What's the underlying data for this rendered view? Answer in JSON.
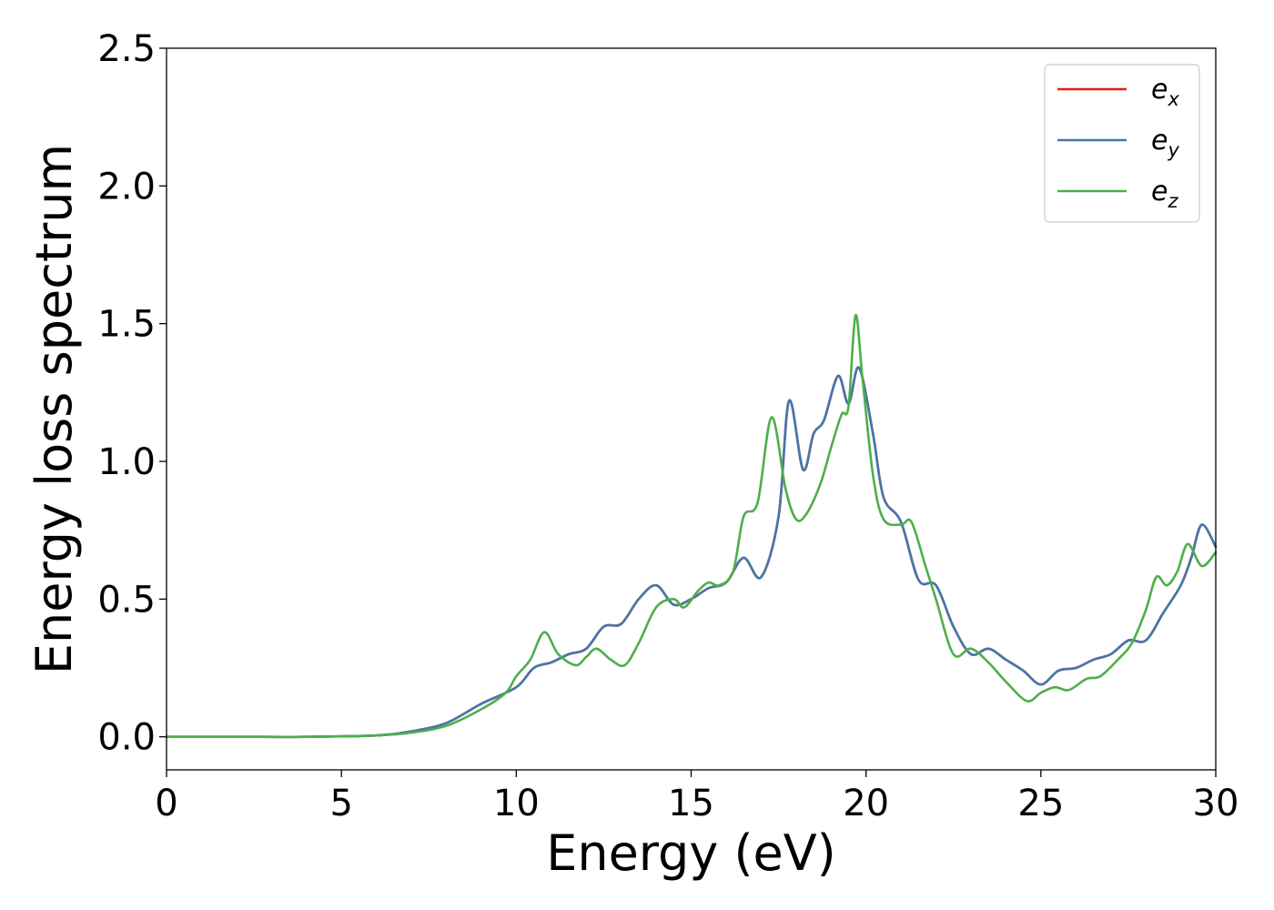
{
  "chart_data": {
    "type": "line",
    "xlabel": "Energy (eV)",
    "ylabel": "Energy loss spectrum",
    "xlim": [
      0,
      30
    ],
    "ylim": [
      -0.12,
      2.5
    ],
    "xticks": [
      0,
      5,
      10,
      15,
      20,
      25,
      30
    ],
    "xtick_labels": [
      "0",
      "5",
      "10",
      "15",
      "20",
      "25",
      "30"
    ],
    "yticks": [
      0.0,
      0.5,
      1.0,
      1.5,
      2.0,
      2.5
    ],
    "ytick_labels": [
      "0.0",
      "0.5",
      "1.0",
      "1.5",
      "2.0",
      "2.5"
    ],
    "grid": false,
    "legend_position": "top-right",
    "series": [
      {
        "name": "e_x",
        "legend_main": "e",
        "legend_sub": "x",
        "color": "#e41a1c",
        "x": [
          0,
          2,
          4,
          6,
          7,
          8,
          9,
          10,
          10.5,
          11,
          11.5,
          12,
          12.5,
          13,
          13.5,
          14,
          14.5,
          15,
          15.5,
          16,
          16.5,
          17,
          17.5,
          17.8,
          18.2,
          18.5,
          18.8,
          19.2,
          19.5,
          19.8,
          20.2,
          20.5,
          21,
          21.5,
          22,
          22.5,
          23,
          23.5,
          24,
          24.5,
          25,
          25.5,
          26,
          26.5,
          27,
          27.5,
          28,
          28.5,
          29,
          29.3,
          29.6,
          30
        ],
        "y": [
          0,
          0,
          0,
          0.005,
          0.02,
          0.05,
          0.12,
          0.18,
          0.25,
          0.27,
          0.3,
          0.32,
          0.4,
          0.41,
          0.5,
          0.55,
          0.48,
          0.5,
          0.54,
          0.56,
          0.65,
          0.58,
          0.8,
          1.22,
          0.97,
          1.1,
          1.15,
          1.31,
          1.21,
          1.34,
          1.1,
          0.87,
          0.78,
          0.57,
          0.55,
          0.4,
          0.3,
          0.32,
          0.28,
          0.24,
          0.19,
          0.24,
          0.25,
          0.28,
          0.3,
          0.35,
          0.35,
          0.45,
          0.55,
          0.65,
          0.77,
          0.69
        ]
      },
      {
        "name": "e_y",
        "legend_main": "e",
        "legend_sub": "y",
        "color": "#4477aa",
        "x": [
          0,
          2,
          4,
          6,
          7,
          8,
          9,
          10,
          10.5,
          11,
          11.5,
          12,
          12.5,
          13,
          13.5,
          14,
          14.5,
          15,
          15.5,
          16,
          16.5,
          17,
          17.5,
          17.8,
          18.2,
          18.5,
          18.8,
          19.2,
          19.5,
          19.8,
          20.2,
          20.5,
          21,
          21.5,
          22,
          22.5,
          23,
          23.5,
          24,
          24.5,
          25,
          25.5,
          26,
          26.5,
          27,
          27.5,
          28,
          28.5,
          29,
          29.3,
          29.6,
          30
        ],
        "y": [
          0,
          0,
          0,
          0.005,
          0.02,
          0.05,
          0.12,
          0.18,
          0.25,
          0.27,
          0.3,
          0.32,
          0.4,
          0.41,
          0.5,
          0.55,
          0.48,
          0.5,
          0.54,
          0.56,
          0.65,
          0.58,
          0.8,
          1.22,
          0.97,
          1.1,
          1.15,
          1.31,
          1.21,
          1.34,
          1.1,
          0.87,
          0.78,
          0.57,
          0.55,
          0.4,
          0.3,
          0.32,
          0.28,
          0.24,
          0.19,
          0.24,
          0.25,
          0.28,
          0.3,
          0.35,
          0.35,
          0.45,
          0.55,
          0.65,
          0.77,
          0.69
        ]
      },
      {
        "name": "e_z",
        "legend_main": "e",
        "legend_sub": "z",
        "color": "#4daf4a",
        "x": [
          0,
          2,
          4,
          6,
          7,
          8,
          9,
          9.7,
          10,
          10.4,
          10.8,
          11.2,
          11.7,
          12,
          12.3,
          12.7,
          13.1,
          13.5,
          14,
          14.5,
          14.8,
          15.2,
          15.5,
          15.8,
          16.2,
          16.5,
          16.9,
          17.3,
          17.7,
          18,
          18.3,
          18.7,
          19,
          19.3,
          19.5,
          19.7,
          19.9,
          20.2,
          20.5,
          21,
          21.3,
          21.7,
          22,
          22.5,
          23,
          23.5,
          24,
          24.6,
          25,
          25.4,
          25.8,
          26.3,
          26.7,
          27.2,
          27.6,
          28,
          28.3,
          28.6,
          28.9,
          29.2,
          29.6,
          30
        ],
        "y": [
          0,
          0,
          0,
          0.005,
          0.015,
          0.04,
          0.1,
          0.16,
          0.22,
          0.28,
          0.38,
          0.3,
          0.26,
          0.29,
          0.32,
          0.28,
          0.26,
          0.34,
          0.47,
          0.5,
          0.47,
          0.53,
          0.56,
          0.55,
          0.6,
          0.8,
          0.85,
          1.16,
          0.9,
          0.79,
          0.81,
          0.92,
          1.05,
          1.17,
          1.2,
          1.53,
          1.3,
          0.95,
          0.79,
          0.77,
          0.78,
          0.62,
          0.5,
          0.3,
          0.32,
          0.27,
          0.2,
          0.13,
          0.16,
          0.18,
          0.17,
          0.21,
          0.22,
          0.28,
          0.34,
          0.46,
          0.58,
          0.55,
          0.6,
          0.7,
          0.62,
          0.67
        ]
      }
    ]
  }
}
